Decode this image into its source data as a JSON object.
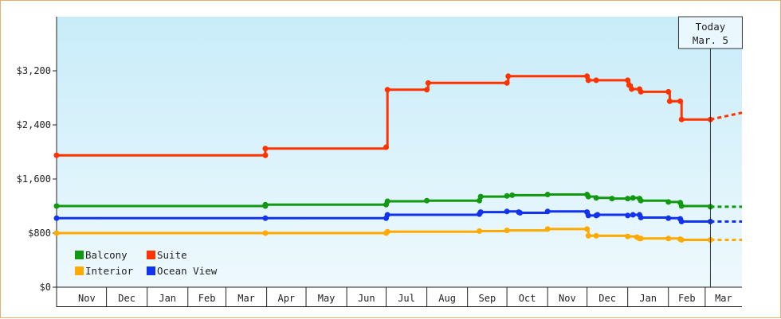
{
  "chart_data": {
    "type": "line",
    "title": "",
    "xlabel": "",
    "ylabel": "",
    "ylim": [
      0,
      4000
    ],
    "y_ticks": [
      "$0",
      "$800",
      "$1,600",
      "$2,400",
      "$3,200"
    ],
    "y_tick_values": [
      0,
      800,
      1600,
      2400,
      3200
    ],
    "x_range": [
      "2023-10-24",
      "2025-03-29"
    ],
    "months": [
      "Nov",
      "Dec",
      "Jan",
      "Feb",
      "Mar",
      "Apr",
      "May",
      "Jun",
      "Jul",
      "Aug",
      "Sep",
      "Oct",
      "Nov",
      "Dec",
      "Jan",
      "Feb",
      "Mar"
    ],
    "month_starts": [
      "2023-11-01",
      "2023-12-01",
      "2024-01-01",
      "2024-02-01",
      "2024-03-01",
      "2024-04-01",
      "2024-05-01",
      "2024-06-01",
      "2024-07-01",
      "2024-08-01",
      "2024-09-01",
      "2024-10-01",
      "2024-11-01",
      "2024-12-01",
      "2025-01-01",
      "2025-02-01",
      "2025-03-01",
      "2025-04-01"
    ],
    "today": {
      "label_line1": "Today",
      "label_line2": "Mar. 5",
      "date": "2025-03-05"
    },
    "background_gradient": [
      "#c8ecf9",
      "#eef9fd"
    ],
    "grid": false,
    "legend_placement": "bottom-left",
    "step": true,
    "series": [
      {
        "name": "Suite",
        "color": "#ff3300",
        "points": [
          [
            "2023-10-24",
            1950
          ],
          [
            "2024-03-31",
            1950
          ],
          [
            "2024-03-31",
            2050
          ],
          [
            "2024-07-01",
            2070
          ],
          [
            "2024-07-02",
            2920
          ],
          [
            "2024-08-01",
            2920
          ],
          [
            "2024-08-02",
            3020
          ],
          [
            "2024-10-01",
            3020
          ],
          [
            "2024-10-02",
            3120
          ],
          [
            "2024-12-01",
            3120
          ],
          [
            "2024-12-02",
            3060
          ],
          [
            "2024-12-08",
            3060
          ],
          [
            "2025-01-01",
            3060
          ],
          [
            "2025-01-02",
            2990
          ],
          [
            "2025-01-04",
            2930
          ],
          [
            "2025-01-10",
            2930
          ],
          [
            "2025-01-11",
            2890
          ],
          [
            "2025-02-01",
            2890
          ],
          [
            "2025-02-02",
            2750
          ],
          [
            "2025-02-10",
            2750
          ],
          [
            "2025-02-11",
            2480
          ],
          [
            "2025-03-05",
            2480
          ]
        ],
        "forecast": [
          [
            "2025-03-05",
            2480
          ],
          [
            "2025-03-17",
            2530
          ],
          [
            "2025-03-29",
            2580
          ]
        ]
      },
      {
        "name": "Balcony",
        "color": "#119911",
        "points": [
          [
            "2023-10-24",
            1200
          ],
          [
            "2024-03-31",
            1200
          ],
          [
            "2024-03-31",
            1220
          ],
          [
            "2024-07-01",
            1220
          ],
          [
            "2024-07-02",
            1270
          ],
          [
            "2024-08-01",
            1280
          ],
          [
            "2024-09-10",
            1280
          ],
          [
            "2024-09-11",
            1340
          ],
          [
            "2024-10-01",
            1350
          ],
          [
            "2024-10-05",
            1360
          ],
          [
            "2024-11-01",
            1370
          ],
          [
            "2024-12-01",
            1370
          ],
          [
            "2024-12-02",
            1340
          ],
          [
            "2024-12-08",
            1320
          ],
          [
            "2024-12-20",
            1310
          ],
          [
            "2025-01-01",
            1310
          ],
          [
            "2025-01-05",
            1320
          ],
          [
            "2025-01-10",
            1310
          ],
          [
            "2025-01-11",
            1280
          ],
          [
            "2025-02-01",
            1260
          ],
          [
            "2025-02-10",
            1250
          ],
          [
            "2025-02-11",
            1200
          ],
          [
            "2025-03-05",
            1190
          ]
        ],
        "forecast": [
          [
            "2025-03-05",
            1190
          ],
          [
            "2025-03-29",
            1190
          ]
        ]
      },
      {
        "name": "Ocean View",
        "color": "#1133ee",
        "points": [
          [
            "2023-10-24",
            1020
          ],
          [
            "2024-03-31",
            1020
          ],
          [
            "2024-07-01",
            1020
          ],
          [
            "2024-07-02",
            1070
          ],
          [
            "2024-09-10",
            1080
          ],
          [
            "2024-09-11",
            1110
          ],
          [
            "2024-10-01",
            1120
          ],
          [
            "2024-10-10",
            1110
          ],
          [
            "2024-10-11",
            1100
          ],
          [
            "2024-11-01",
            1120
          ],
          [
            "2024-12-01",
            1110
          ],
          [
            "2024-12-02",
            1060
          ],
          [
            "2024-12-08",
            1060
          ],
          [
            "2024-12-09",
            1070
          ],
          [
            "2025-01-01",
            1060
          ],
          [
            "2025-01-05",
            1070
          ],
          [
            "2025-01-10",
            1070
          ],
          [
            "2025-01-11",
            1030
          ],
          [
            "2025-02-01",
            1020
          ],
          [
            "2025-02-10",
            1010
          ],
          [
            "2025-02-11",
            970
          ],
          [
            "2025-03-05",
            970
          ]
        ],
        "forecast": [
          [
            "2025-03-05",
            970
          ],
          [
            "2025-03-29",
            970
          ]
        ]
      },
      {
        "name": "Interior",
        "color": "#ffaa00",
        "points": [
          [
            "2023-10-24",
            800
          ],
          [
            "2024-03-31",
            800
          ],
          [
            "2024-07-01",
            800
          ],
          [
            "2024-07-02",
            820
          ],
          [
            "2024-09-10",
            830
          ],
          [
            "2024-10-01",
            840
          ],
          [
            "2024-11-01",
            860
          ],
          [
            "2024-12-01",
            860
          ],
          [
            "2024-12-02",
            760
          ],
          [
            "2024-12-08",
            760
          ],
          [
            "2025-01-01",
            750
          ],
          [
            "2025-01-08",
            740
          ],
          [
            "2025-01-10",
            720
          ],
          [
            "2025-01-11",
            720
          ],
          [
            "2025-02-01",
            720
          ],
          [
            "2025-02-10",
            710
          ],
          [
            "2025-02-11",
            700
          ],
          [
            "2025-03-05",
            700
          ]
        ],
        "forecast": [
          [
            "2025-03-05",
            700
          ],
          [
            "2025-03-29",
            700
          ]
        ]
      }
    ],
    "legend": [
      {
        "name": "Balcony",
        "color": "#119911"
      },
      {
        "name": "Suite",
        "color": "#ff3300"
      },
      {
        "name": "Interior",
        "color": "#ffaa00"
      },
      {
        "name": "Ocean View",
        "color": "#1133ee"
      }
    ]
  }
}
